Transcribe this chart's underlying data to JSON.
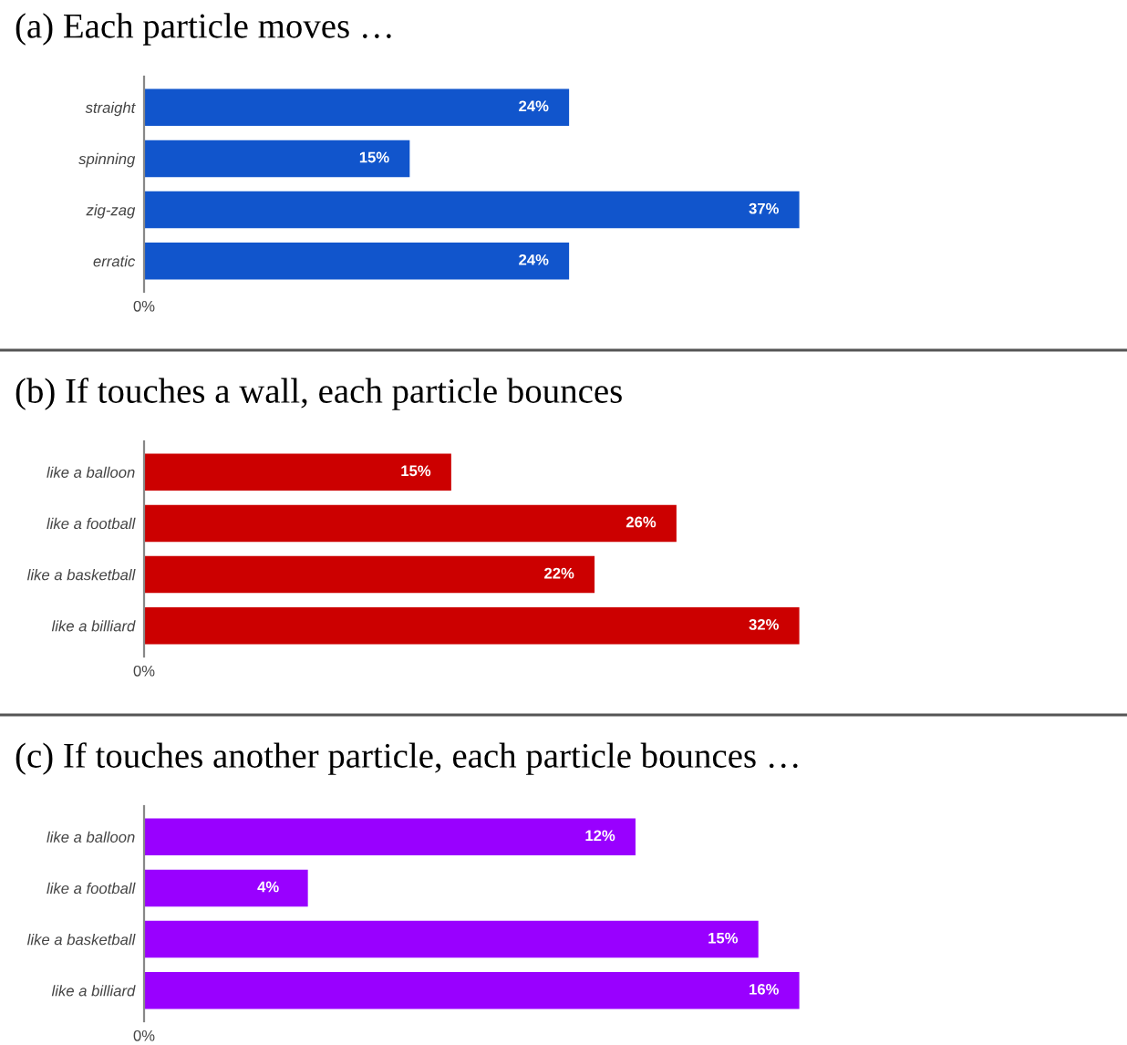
{
  "chart_data": [
    {
      "type": "bar",
      "orientation": "horizontal",
      "title": "(a) Each particle moves …",
      "categories": [
        "straight",
        "spinning",
        "zig-zag",
        "erratic"
      ],
      "values": [
        24,
        15,
        37,
        24
      ],
      "value_labels": [
        "24%",
        "15%",
        "37%",
        "24%"
      ],
      "color": "#1155cc",
      "annotations": [
        "0%"
      ],
      "grid": false,
      "legend": false
    },
    {
      "type": "bar",
      "orientation": "horizontal",
      "title": "(b) If touches a wall, each particle bounces",
      "categories": [
        "like a balloon",
        "like a football",
        "like a basketball",
        "like a billiard"
      ],
      "values": [
        15,
        26,
        22,
        32
      ],
      "value_labels": [
        "15%",
        "26%",
        "22%",
        "32%"
      ],
      "color": "#cc0000",
      "annotations": [
        "0%"
      ],
      "grid": false,
      "legend": false
    },
    {
      "type": "bar",
      "orientation": "horizontal",
      "title": "(c) If touches another particle, each particle bounces …",
      "categories": [
        "like a balloon",
        "like a football",
        "like a basketball",
        "like a billiard"
      ],
      "values": [
        12,
        4,
        15,
        16
      ],
      "value_labels": [
        "12%",
        "4%",
        "15%",
        "16%"
      ],
      "color": "#9900ff",
      "annotations": [
        "0%"
      ],
      "grid": false,
      "legend": false
    }
  ]
}
